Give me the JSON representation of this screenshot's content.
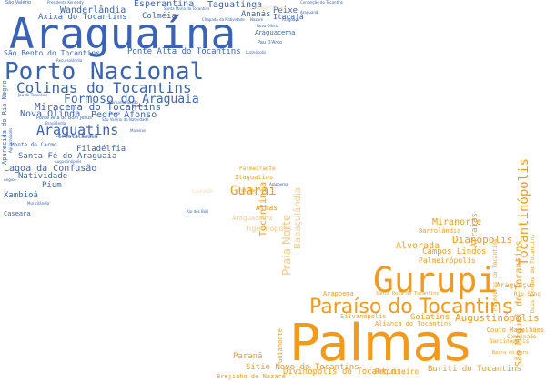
{
  "palette": {
    "blue": "#3a63b8",
    "orange": "#f39a1d",
    "light_orange": "#f5c98c",
    "pale_orange": "#f7dcb5"
  },
  "words": [
    {
      "text": "Araguaína",
      "color": "blue"
    },
    {
      "text": "Porto Nacional",
      "color": "blue"
    },
    {
      "text": "Colinas do Tocantins",
      "color": "blue"
    },
    {
      "text": "Araguatins",
      "color": "blue"
    },
    {
      "text": "Formoso do Araguaia",
      "color": "blue"
    },
    {
      "text": "Miracema do Tocantins",
      "color": "blue"
    },
    {
      "text": "Pedro Afonso",
      "color": "blue"
    },
    {
      "text": "Nova Olinda",
      "color": "blue"
    },
    {
      "text": "Wanderlândia",
      "color": "blue"
    },
    {
      "text": "Esperantina",
      "color": "blue"
    },
    {
      "text": "Taguatinga",
      "color": "blue"
    },
    {
      "text": "Axixá do Tocantins",
      "color": "blue"
    },
    {
      "text": "Colméia",
      "color": "blue"
    },
    {
      "text": "Ananás",
      "color": "blue"
    },
    {
      "text": "Peixe",
      "color": "blue"
    },
    {
      "text": "Itacajá",
      "color": "blue"
    },
    {
      "text": "Araguacema",
      "color": "blue"
    },
    {
      "text": "Araguanã",
      "color": "blue"
    },
    {
      "text": "Araguaçu",
      "color": "blue"
    },
    {
      "text": "Lagoa da Confusão",
      "color": "blue"
    },
    {
      "text": "Filadélfia",
      "color": "blue"
    },
    {
      "text": "Santa Fé do Araguaia",
      "color": "blue"
    },
    {
      "text": "Natividade",
      "color": "blue"
    },
    {
      "text": "Pium",
      "color": "blue"
    },
    {
      "text": "Xambioá",
      "color": "blue"
    },
    {
      "text": "Caseara",
      "color": "blue"
    },
    {
      "text": "Monte do Carmo",
      "color": "blue"
    },
    {
      "text": "Cristalândia",
      "color": "blue"
    },
    {
      "text": "Ponte Alta do Tocantins",
      "color": "blue"
    },
    {
      "text": "São Bento do Tocantins",
      "color": "blue"
    },
    {
      "text": "Aparecida do Rio Negro",
      "color": "blue"
    },
    {
      "text": "São Valério",
      "color": "blue"
    },
    {
      "text": "Presidente Kennedy",
      "color": "blue"
    },
    {
      "text": "Santa Maria do Tocantins",
      "color": "blue"
    },
    {
      "text": "Conceição do Tocantins",
      "color": "blue"
    },
    {
      "text": "Dueré",
      "color": "blue"
    },
    {
      "text": "Recursolândia",
      "color": "blue"
    },
    {
      "text": "Nazaré",
      "color": "blue"
    },
    {
      "text": "Chapada da Natividade",
      "color": "blue"
    },
    {
      "text": "Nova Olinda",
      "color": "blue"
    },
    {
      "text": "Pau D'Arco",
      "color": "blue"
    },
    {
      "text": "Luzinópolis",
      "color": "blue"
    },
    {
      "text": "Bernardo Sayão",
      "color": "blue"
    },
    {
      "text": "Rio dos Bois",
      "color": "blue"
    },
    {
      "text": "Juarina",
      "color": "blue"
    },
    {
      "text": "Sítio Novo do Tocantins",
      "color": "blue"
    },
    {
      "text": "Jaú do Tocantins",
      "color": "blue"
    },
    {
      "text": "Ponte Alta do Bom Jesus",
      "color": "blue"
    },
    {
      "text": "São Valério da Natividade",
      "color": "blue"
    },
    {
      "text": "Brasilândia",
      "color": "blue"
    },
    {
      "text": "Augustinópolis",
      "color": "blue"
    },
    {
      "text": "Angico",
      "color": "blue"
    },
    {
      "text": "Muricilândia",
      "color": "blue"
    },
    {
      "text": "Aguiarnópolis",
      "color": "blue"
    },
    {
      "text": "Mateiros",
      "color": "blue"
    },
    {
      "text": "Arapoema",
      "color": "blue"
    },
    {
      "text": "Palmas",
      "color": "orange"
    },
    {
      "text": "Gurupi",
      "color": "orange"
    },
    {
      "text": "Paraíso do Tocantins",
      "color": "orange"
    },
    {
      "text": "Tocantinópolis",
      "color": "orange"
    },
    {
      "text": "Dianópolis",
      "color": "orange"
    },
    {
      "text": "Augustinópolis",
      "color": "orange"
    },
    {
      "text": "Guaraí",
      "color": "orange"
    },
    {
      "text": "São Miguel do Tocantins",
      "color": "orange"
    },
    {
      "text": "Goiatins",
      "color": "orange"
    },
    {
      "text": "Miranorte",
      "color": "orange"
    },
    {
      "text": "Alvorada",
      "color": "orange"
    },
    {
      "text": "Campos Lindos",
      "color": "orange"
    },
    {
      "text": "Arraias",
      "color": "orange"
    },
    {
      "text": "Tocantínia",
      "color": "orange"
    },
    {
      "text": "Araguaçu",
      "color": "orange"
    },
    {
      "text": "Palmeirópolis",
      "color": "orange"
    },
    {
      "text": "Barrolândia",
      "color": "orange"
    },
    {
      "text": "Almas",
      "color": "orange"
    },
    {
      "text": "Itaguatins",
      "color": "orange"
    },
    {
      "text": "Palmeirante",
      "color": "orange"
    },
    {
      "text": "Buriti do Tocantins",
      "color": "orange"
    },
    {
      "text": "Paranã",
      "color": "orange"
    },
    {
      "text": "Sítio Novo do Tocantins",
      "color": "orange"
    },
    {
      "text": "Divinópolis do Tocantins",
      "color": "orange"
    },
    {
      "text": "Pequizeiro",
      "color": "orange"
    },
    {
      "text": "Silvanópolis",
      "color": "orange"
    },
    {
      "text": "Aliança do Tocantins",
      "color": "orange"
    },
    {
      "text": "Couto Magalhães",
      "color": "orange"
    },
    {
      "text": "Darcinópolis",
      "color": "orange"
    },
    {
      "text": "Combinado",
      "color": "orange"
    },
    {
      "text": "Barra do Ouro",
      "color": "orange"
    },
    {
      "text": "Goianorte",
      "color": "orange"
    },
    {
      "text": "Arapoema",
      "color": "orange"
    },
    {
      "text": "Santa Rosa do Tocantins",
      "color": "orange"
    },
    {
      "text": "Brejinho de Nazaré",
      "color": "orange"
    },
    {
      "text": "Palmeiras do Tocantins",
      "color": "orange"
    },
    {
      "text": "Dois Irmãos do Tocantins",
      "color": "orange"
    },
    {
      "text": "Rio Sono",
      "color": "orange"
    },
    {
      "text": "Fátima",
      "color": "orange"
    },
    {
      "text": "Praia Norte",
      "color": "light_orange"
    },
    {
      "text": "Babaçulândia",
      "color": "light_orange"
    },
    {
      "text": "Figueirópolis",
      "color": "light_orange"
    },
    {
      "text": "Araguacema",
      "color": "light_orange"
    },
    {
      "text": "Lajeado",
      "color": "pale_orange"
    },
    {
      "text": "Aragominas",
      "color": "pale_orange"
    }
  ]
}
